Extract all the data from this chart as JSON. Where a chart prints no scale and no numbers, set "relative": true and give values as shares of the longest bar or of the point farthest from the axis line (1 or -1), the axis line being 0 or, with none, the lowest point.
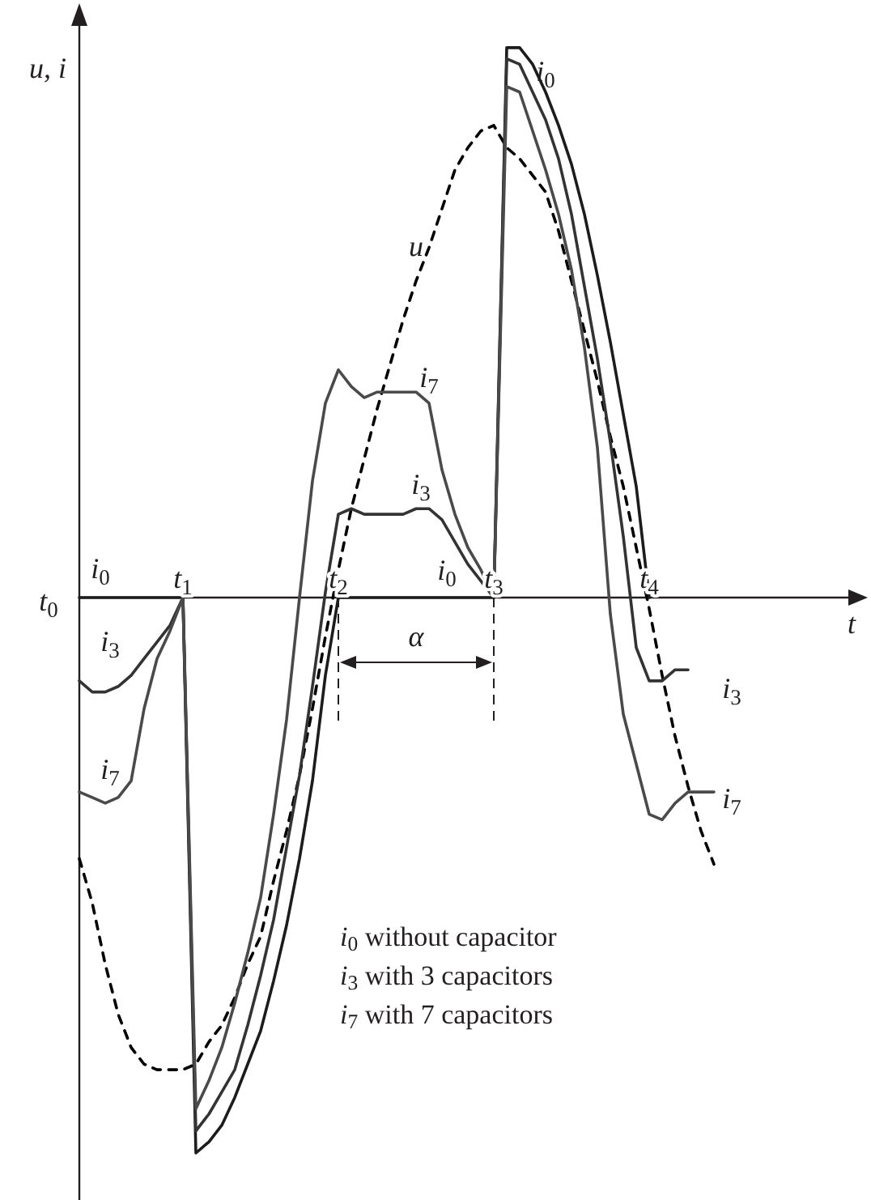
{
  "chart_data": {
    "type": "line",
    "relative": true,
    "xlabel": "t",
    "ylabel": "u, i",
    "categories": [
      null,
      null,
      null,
      null,
      null,
      null,
      null,
      null,
      "t$_{1}$",
      null,
      null,
      null,
      null,
      null,
      null,
      null,
      null,
      null,
      null,
      null,
      "t$_{2}$",
      null,
      null,
      null,
      null,
      null,
      null,
      null,
      null,
      null,
      null,
      null,
      "t$_{3}$",
      null,
      null,
      null,
      null,
      null,
      null,
      null,
      null,
      null,
      null,
      null,
      "t$_{4}$",
      null,
      null,
      null,
      null,
      null,
      null,
      null,
      null,
      null,
      null,
      null,
      null,
      null,
      null,
      null,
      null
    ],
    "series": [
      {
        "name": "u",
        "color": "#000000",
        "line_style": "dashed",
        "values": [
          -0.47,
          -0.55,
          -0.66,
          -0.75,
          -0.81,
          -0.84,
          -0.85,
          -0.85,
          -0.85,
          -0.84,
          -0.8,
          -0.77,
          -0.72,
          -0.66,
          -0.61,
          -0.51,
          -0.42,
          -0.32,
          -0.2,
          -0.07,
          0.05,
          0.16,
          0.25,
          0.34,
          0.42,
          0.5,
          0.57,
          0.63,
          0.7,
          0.77,
          0.81,
          0.84,
          0.85,
          0.81,
          0.79,
          0.76,
          0.73,
          0.66,
          0.57,
          0.48,
          0.39,
          0.29,
          0.2,
          0.09,
          -0.02,
          -0.14,
          -0.25,
          -0.34,
          -0.42,
          -0.48,
          null,
          null,
          null,
          null,
          null,
          null,
          null,
          null,
          null,
          null,
          null
        ]
      },
      {
        "name": "i$_{0}$",
        "color": "#1c1c1c",
        "line_style": "solid",
        "values": [
          0,
          0,
          0,
          0,
          0,
          0,
          0,
          0,
          0,
          -1.0,
          -0.98,
          -0.95,
          -0.9,
          -0.84,
          -0.78,
          -0.69,
          -0.59,
          -0.47,
          -0.33,
          -0.14,
          0,
          0,
          0,
          0,
          0,
          0,
          0,
          0,
          0,
          0,
          0,
          0,
          0,
          0.99,
          0.99,
          0.96,
          0.91,
          0.85,
          0.78,
          0.69,
          0.58,
          0.46,
          0.33,
          0.2,
          0,
          null,
          null,
          null,
          null,
          null,
          null,
          null,
          null,
          null,
          null,
          null,
          null,
          null,
          null,
          null,
          null
        ]
      },
      {
        "name": "i$_{3}$",
        "color": "#333333",
        "line_style": "solid",
        "values": [
          -0.15,
          -0.17,
          -0.17,
          -0.16,
          -0.14,
          -0.11,
          -0.08,
          -0.05,
          0,
          -0.96,
          -0.93,
          -0.89,
          -0.85,
          -0.77,
          -0.68,
          -0.58,
          -0.45,
          -0.32,
          -0.16,
          0.01,
          0.15,
          0.16,
          0.15,
          0.15,
          0.15,
          0.15,
          0.16,
          0.16,
          0.14,
          0.1,
          0.06,
          0.03,
          0,
          0.97,
          0.96,
          0.91,
          0.86,
          0.79,
          0.69,
          0.56,
          0.43,
          0.28,
          0.11,
          -0.09,
          -0.15,
          -0.15,
          -0.13,
          -0.13,
          null,
          null,
          null,
          null,
          null,
          null,
          null,
          null,
          null,
          null,
          null,
          null,
          null
        ]
      },
      {
        "name": "i$_{7}$",
        "color": "#4a4a4a",
        "line_style": "solid",
        "values": [
          -0.35,
          -0.36,
          -0.37,
          -0.36,
          -0.33,
          -0.2,
          -0.11,
          -0.06,
          0,
          -0.92,
          -0.87,
          -0.81,
          -0.73,
          -0.64,
          -0.54,
          -0.39,
          -0.22,
          0,
          0.21,
          0.35,
          0.41,
          0.38,
          0.36,
          0.37,
          0.37,
          0.37,
          0.37,
          0.35,
          0.23,
          0.15,
          0.09,
          0.05,
          0,
          0.92,
          0.91,
          0.84,
          0.77,
          0.69,
          0.59,
          0.45,
          0.27,
          -0.03,
          -0.21,
          -0.3,
          -0.39,
          -0.4,
          -0.37,
          -0.35,
          -0.35,
          -0.35,
          null,
          null,
          null,
          null,
          null,
          null,
          null,
          null,
          null,
          null,
          null
        ]
      }
    ],
    "annotations": [
      "t$_{0}$",
      "i$_{0}$",
      "i$_{3}$",
      "i$_{7}$",
      "i$_{7}$",
      "i$_{3}$",
      "i$_{0}$",
      "α",
      "i$_{0}$ without capacitor",
      "i$_{3}$ with 3 capacitors",
      "i$_{7}$ with 7 capacitors"
    ]
  }
}
